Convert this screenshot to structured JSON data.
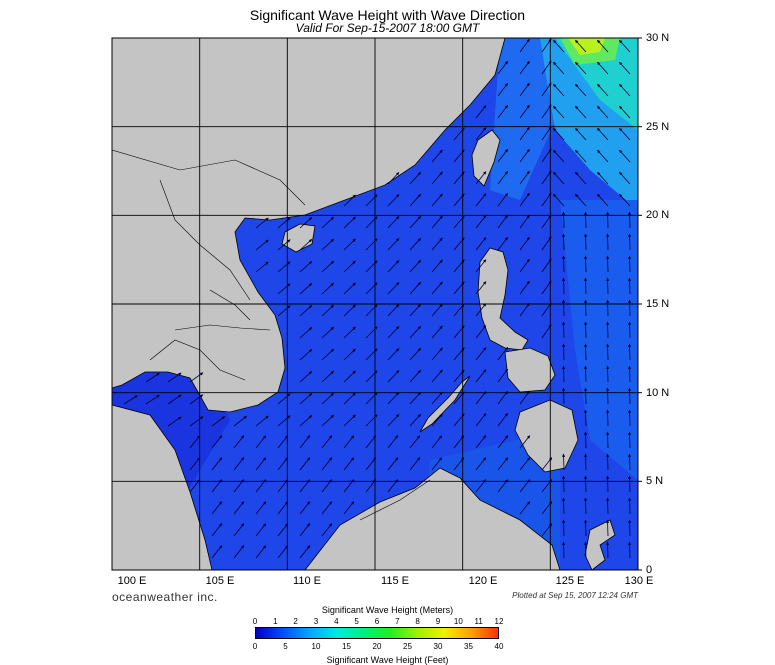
{
  "title": "Significant Wave Height with Wave Direction",
  "subtitle": "Valid For Sep-15-2007 18:00 GMT",
  "brand": "oceanweather inc.",
  "plotted_note": "Plotted at Sep 15, 2007 12:24 GMT",
  "map": {
    "lon_range": [
      100,
      130
    ],
    "lat_range": [
      0,
      30
    ],
    "lon_labels": [
      "100 E",
      "105 E",
      "110 E",
      "115 E",
      "120 E",
      "125 E",
      "130 E"
    ],
    "lat_labels": [
      "30 N",
      "25 N",
      "20 N",
      "15 N",
      "10 N",
      "5 N",
      "0"
    ],
    "colors": {
      "land": "#c4c4c4",
      "sea_base": "#1a3fe6",
      "grid": "#000000"
    }
  },
  "colorbar": {
    "title_meters": "Significant Wave Height (Meters)",
    "title_feet": "Significant Wave Height (Feet)",
    "meter_ticks": [
      "0",
      "1",
      "2",
      "3",
      "4",
      "5",
      "6",
      "7",
      "8",
      "9",
      "10",
      "11",
      "12"
    ],
    "feet_ticks": [
      "0",
      "5",
      "10",
      "15",
      "20",
      "25",
      "30",
      "35",
      "40"
    ],
    "gradient": [
      "#0000c8",
      "#0050ff",
      "#00a8ff",
      "#00e8e0",
      "#00f080",
      "#20f020",
      "#a0f000",
      "#f0f000",
      "#ffa000",
      "#ff3000"
    ]
  }
}
